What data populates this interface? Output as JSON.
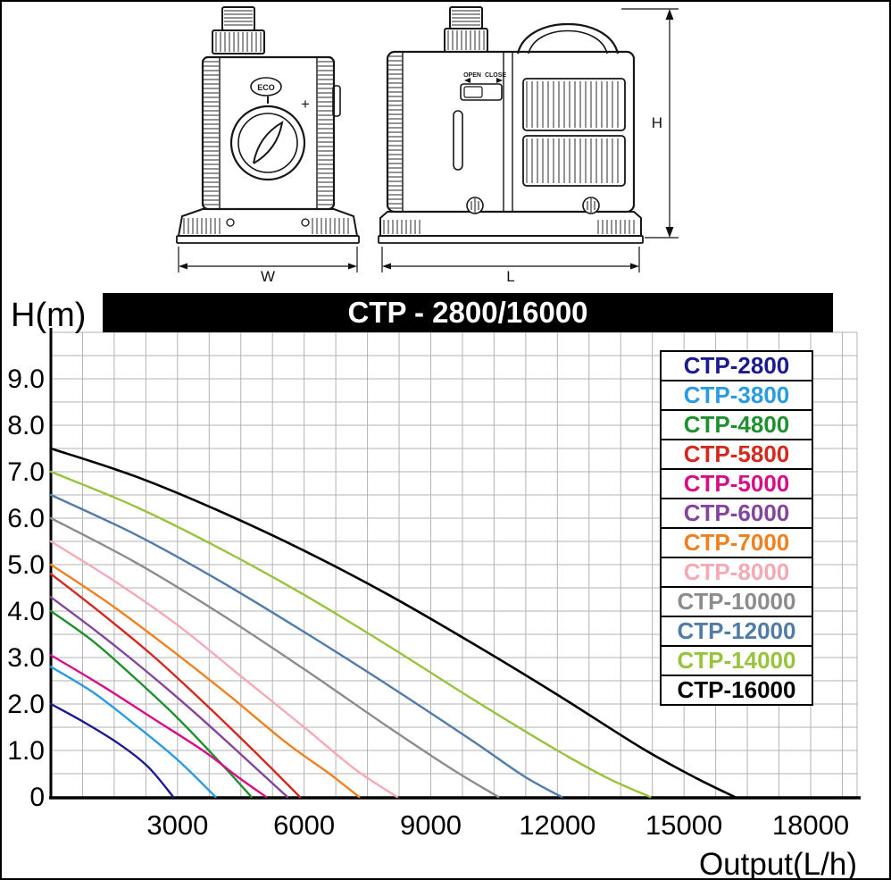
{
  "image": {
    "background": "#ffffff",
    "border_color": "#000000"
  },
  "technical_drawing": {
    "front_view": {
      "eco_label": "ECO",
      "plus_label": "+",
      "width_dimension_label": "W",
      "dial_icon": "rotary-flow-dial-icon"
    },
    "side_view": {
      "open_label": "OPEN",
      "close_label": "CLOSE",
      "length_dimension_label": "L",
      "height_dimension_label": "H",
      "handle_icon": "carry-handle-icon"
    }
  },
  "chart_data": {
    "type": "line",
    "title": "CTP - 2800/16000",
    "title_bar": {
      "background": "#000000",
      "text_color": "#ffffff"
    },
    "ylabel": "H(m)",
    "xlabel": "Output(L/h)",
    "xlim": [
      0,
      19100
    ],
    "ylim": [
      0,
      10
    ],
    "grid": {
      "x_step": 750,
      "y_step": 0.5,
      "color": "#b3b3b3",
      "axis_color": "#000000",
      "grid_on": true
    },
    "legend_position": "top-right",
    "x_ticks": [
      {
        "v": 3000,
        "label": "3000"
      },
      {
        "v": 6000,
        "label": "6000"
      },
      {
        "v": 9000,
        "label": "9000"
      },
      {
        "v": 12000,
        "label": "12000"
      },
      {
        "v": 15000,
        "label": "15000"
      },
      {
        "v": 18000,
        "label": "18000"
      }
    ],
    "y_ticks": [
      {
        "v": 0,
        "label": "0"
      },
      {
        "v": 1,
        "label": "1.0"
      },
      {
        "v": 2,
        "label": "2.0"
      },
      {
        "v": 3,
        "label": "3.0"
      },
      {
        "v": 4,
        "label": "4.0"
      },
      {
        "v": 5,
        "label": "5.0"
      },
      {
        "v": 6,
        "label": "6.0"
      },
      {
        "v": 7,
        "label": "7.0"
      },
      {
        "v": 8,
        "label": "8.0"
      },
      {
        "v": 9,
        "label": "9.0"
      }
    ],
    "series": [
      {
        "name": "CTP-2800",
        "color": "#1b1b8f",
        "points": [
          [
            0,
            2.0
          ],
          [
            800,
            1.6
          ],
          [
            1600,
            1.15
          ],
          [
            2300,
            0.65
          ],
          [
            2900,
            0
          ]
        ]
      },
      {
        "name": "CTP-3800",
        "color": "#2b9be1",
        "points": [
          [
            0,
            2.8
          ],
          [
            1000,
            2.25
          ],
          [
            2000,
            1.55
          ],
          [
            3000,
            0.8
          ],
          [
            3900,
            0
          ]
        ]
      },
      {
        "name": "CTP-4800",
        "color": "#1f8f2f",
        "points": [
          [
            0,
            4.0
          ],
          [
            1000,
            3.35
          ],
          [
            2000,
            2.55
          ],
          [
            3000,
            1.7
          ],
          [
            4000,
            0.75
          ],
          [
            4750,
            0
          ]
        ]
      },
      {
        "name": "CTP-5800",
        "color": "#d3291f",
        "points": [
          [
            0,
            4.8
          ],
          [
            1200,
            3.95
          ],
          [
            2400,
            3.05
          ],
          [
            3600,
            2.05
          ],
          [
            4800,
            1.0
          ],
          [
            5900,
            0
          ]
        ]
      },
      {
        "name": "CTP-5000",
        "color": "#d60f86",
        "points": [
          [
            0,
            3.05
          ],
          [
            1200,
            2.4
          ],
          [
            2400,
            1.7
          ],
          [
            3600,
            1.0
          ],
          [
            4400,
            0.45
          ],
          [
            5100,
            0
          ]
        ]
      },
      {
        "name": "CTP-6000",
        "color": "#84459c",
        "points": [
          [
            0,
            4.3
          ],
          [
            1100,
            3.55
          ],
          [
            2200,
            2.75
          ],
          [
            3300,
            1.9
          ],
          [
            4400,
            1.0
          ],
          [
            5600,
            0
          ]
        ]
      },
      {
        "name": "CTP-7000",
        "color": "#ef8120",
        "points": [
          [
            0,
            5.0
          ],
          [
            1400,
            4.15
          ],
          [
            2800,
            3.2
          ],
          [
            4200,
            2.2
          ],
          [
            5600,
            1.15
          ],
          [
            6600,
            0.5
          ],
          [
            7300,
            0
          ]
        ]
      },
      {
        "name": "CTP-8000",
        "color": "#f4aab4",
        "points": [
          [
            0,
            5.5
          ],
          [
            1500,
            4.65
          ],
          [
            3000,
            3.7
          ],
          [
            4500,
            2.6
          ],
          [
            6000,
            1.5
          ],
          [
            7200,
            0.6
          ],
          [
            8200,
            0
          ]
        ]
      },
      {
        "name": "CTP-10000",
        "color": "#8c8c8c",
        "points": [
          [
            0,
            6.0
          ],
          [
            2000,
            5.05
          ],
          [
            4000,
            3.95
          ],
          [
            6000,
            2.75
          ],
          [
            8000,
            1.5
          ],
          [
            9500,
            0.6
          ],
          [
            10600,
            0
          ]
        ]
      },
      {
        "name": "CTP-12000",
        "color": "#527ca8",
        "points": [
          [
            0,
            6.5
          ],
          [
            2000,
            5.65
          ],
          [
            4000,
            4.65
          ],
          [
            6000,
            3.55
          ],
          [
            8000,
            2.4
          ],
          [
            10000,
            1.2
          ],
          [
            11200,
            0.45
          ],
          [
            12100,
            0
          ]
        ]
      },
      {
        "name": "CTP-14000",
        "color": "#97c43c",
        "points": [
          [
            0,
            7.0
          ],
          [
            2000,
            6.25
          ],
          [
            4000,
            5.35
          ],
          [
            6000,
            4.35
          ],
          [
            8000,
            3.25
          ],
          [
            10000,
            2.1
          ],
          [
            12000,
            1.0
          ],
          [
            13200,
            0.4
          ],
          [
            14200,
            0
          ]
        ]
      },
      {
        "name": "CTP-16000",
        "color": "#000000",
        "points": [
          [
            0,
            7.5
          ],
          [
            2000,
            6.9
          ],
          [
            4000,
            6.15
          ],
          [
            6000,
            5.3
          ],
          [
            8000,
            4.35
          ],
          [
            10000,
            3.3
          ],
          [
            12000,
            2.2
          ],
          [
            14000,
            1.05
          ],
          [
            15300,
            0.4
          ],
          [
            16200,
            0
          ]
        ]
      }
    ]
  }
}
